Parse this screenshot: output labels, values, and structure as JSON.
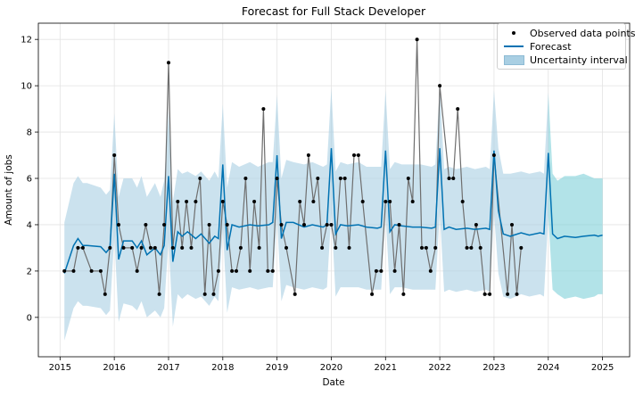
{
  "chart_data": {
    "type": "line",
    "title": "Forecast for Full Stack Developer",
    "xlabel": "Date",
    "ylabel": "Amount of jobs",
    "xlim": [
      2014.6,
      2025.5
    ],
    "ylim": [
      -1.7,
      12.7
    ],
    "x_ticks": [
      "2015",
      "2016",
      "2017",
      "2018",
      "2019",
      "2020",
      "2021",
      "2022",
      "2023",
      "2024",
      "2025"
    ],
    "y_ticks": [
      "0",
      "2",
      "4",
      "6",
      "8",
      "10",
      "12"
    ],
    "grid": true,
    "legend_position": "top-right",
    "legend": {
      "observed": "Observed data points",
      "forecast": "Forecast",
      "uncertainty": "Uncertainty interval"
    },
    "colors": {
      "observed": "#000000",
      "observed_line": "#6e6e6e",
      "forecast": "#0072B2",
      "uncertainty": "#a9cfe3",
      "future_uncertainty": "#7fd1d8"
    },
    "observed": {
      "x": [
        2015.08,
        2015.25,
        2015.33,
        2015.42,
        2015.58,
        2015.75,
        2015.83,
        2015.92,
        2016.0,
        2016.08,
        2016.17,
        2016.33,
        2016.42,
        2016.5,
        2016.58,
        2016.67,
        2016.75,
        2016.83,
        2016.92,
        2017.0,
        2017.08,
        2017.17,
        2017.25,
        2017.33,
        2017.42,
        2017.5,
        2017.58,
        2017.67,
        2017.75,
        2017.83,
        2017.92,
        2018.0,
        2018.08,
        2018.17,
        2018.25,
        2018.33,
        2018.42,
        2018.5,
        2018.58,
        2018.67,
        2018.75,
        2018.83,
        2018.92,
        2019.0,
        2019.08,
        2019.17,
        2019.33,
        2019.42,
        2019.5,
        2019.58,
        2019.67,
        2019.75,
        2019.83,
        2019.92,
        2020.0,
        2020.08,
        2020.17,
        2020.25,
        2020.33,
        2020.42,
        2020.5,
        2020.58,
        2020.75,
        2020.83,
        2020.92,
        2021.0,
        2021.08,
        2021.17,
        2021.25,
        2021.33,
        2021.42,
        2021.5,
        2021.58,
        2021.67,
        2021.75,
        2021.83,
        2021.92,
        2022.0,
        2022.17,
        2022.25,
        2022.33,
        2022.42,
        2022.5,
        2022.58,
        2022.67,
        2022.75,
        2022.83,
        2022.92,
        2023.0,
        2023.25,
        2023.33,
        2023.42,
        2023.5
      ],
      "y": [
        2,
        2,
        3,
        3,
        2,
        2,
        1,
        3,
        7,
        4,
        3,
        3,
        2,
        3,
        4,
        3,
        3,
        1,
        4,
        11,
        3,
        5,
        3,
        5,
        3,
        5,
        6,
        1,
        4,
        1,
        2,
        5,
        4,
        2,
        2,
        3,
        6,
        2,
        5,
        3,
        9,
        2,
        2,
        6,
        4,
        3,
        1,
        5,
        4,
        7,
        5,
        6,
        3,
        4,
        4,
        3,
        6,
        6,
        3,
        7,
        7,
        5,
        1,
        2,
        2,
        5,
        5,
        2,
        4,
        1,
        6,
        5,
        12,
        3,
        3,
        2,
        3,
        10,
        6,
        6,
        9,
        5,
        3,
        3,
        4,
        3,
        1,
        1,
        7,
        1,
        4,
        1,
        3
      ]
    },
    "forecast": {
      "x": [
        2015.08,
        2015.25,
        2015.33,
        2015.42,
        2015.5,
        2015.75,
        2015.85,
        2015.92,
        2016.0,
        2016.08,
        2016.17,
        2016.33,
        2016.42,
        2016.5,
        2016.6,
        2016.75,
        2016.85,
        2016.92,
        2017.0,
        2017.08,
        2017.17,
        2017.25,
        2017.35,
        2017.5,
        2017.6,
        2017.75,
        2017.85,
        2017.92,
        2018.0,
        2018.08,
        2018.17,
        2018.3,
        2018.5,
        2018.65,
        2018.85,
        2018.92,
        2019.0,
        2019.08,
        2019.17,
        2019.3,
        2019.5,
        2019.65,
        2019.85,
        2019.92,
        2020.0,
        2020.08,
        2020.17,
        2020.3,
        2020.5,
        2020.65,
        2020.85,
        2020.92,
        2021.0,
        2021.08,
        2021.17,
        2021.3,
        2021.5,
        2021.65,
        2021.85,
        2021.92,
        2022.0,
        2022.08,
        2022.17,
        2022.3,
        2022.5,
        2022.65,
        2022.85,
        2022.92,
        2023.0,
        2023.08,
        2023.17,
        2023.3,
        2023.5,
        2023.65,
        2023.85,
        2023.92,
        2024.0,
        2024.08,
        2024.17,
        2024.3,
        2024.5,
        2024.65,
        2024.85,
        2024.92,
        2025.0
      ],
      "y": [
        1.9,
        3.1,
        3.4,
        3.1,
        3.1,
        3.05,
        2.8,
        3.0,
        6.2,
        2.5,
        3.3,
        3.3,
        3.0,
        3.3,
        2.7,
        3.0,
        2.7,
        3.1,
        6.1,
        2.4,
        3.7,
        3.5,
        3.7,
        3.4,
        3.6,
        3.2,
        3.5,
        3.4,
        6.6,
        2.9,
        4.0,
        3.9,
        4.0,
        3.95,
        4.0,
        4.1,
        7.0,
        3.4,
        4.1,
        4.1,
        3.9,
        4.0,
        3.9,
        4.0,
        7.3,
        3.6,
        4.0,
        3.95,
        4.0,
        3.9,
        3.85,
        3.9,
        7.2,
        3.7,
        4.0,
        3.95,
        3.9,
        3.9,
        3.85,
        3.9,
        7.3,
        3.8,
        3.9,
        3.8,
        3.85,
        3.8,
        3.85,
        3.8,
        7.2,
        4.6,
        3.6,
        3.5,
        3.65,
        3.55,
        3.65,
        3.6,
        7.1,
        3.6,
        3.4,
        3.5,
        3.45,
        3.5,
        3.55,
        3.5,
        3.55
      ]
    },
    "uncertainty": {
      "x": [
        2015.08,
        2015.25,
        2015.33,
        2015.42,
        2015.5,
        2015.75,
        2015.85,
        2015.92,
        2016.0,
        2016.08,
        2016.17,
        2016.33,
        2016.42,
        2016.5,
        2016.6,
        2016.75,
        2016.85,
        2016.92,
        2017.0,
        2017.08,
        2017.17,
        2017.25,
        2017.35,
        2017.5,
        2017.6,
        2017.75,
        2017.85,
        2017.92,
        2018.0,
        2018.08,
        2018.17,
        2018.3,
        2018.5,
        2018.65,
        2018.85,
        2018.92,
        2019.0,
        2019.08,
        2019.17,
        2019.3,
        2019.5,
        2019.65,
        2019.85,
        2019.92,
        2020.0,
        2020.08,
        2020.17,
        2020.3,
        2020.5,
        2020.65,
        2020.85,
        2020.92,
        2021.0,
        2021.08,
        2021.17,
        2021.3,
        2021.5,
        2021.65,
        2021.85,
        2021.92,
        2022.0,
        2022.08,
        2022.17,
        2022.3,
        2022.5,
        2022.65,
        2022.85,
        2022.92,
        2023.0,
        2023.08,
        2023.17,
        2023.3,
        2023.5,
        2023.65,
        2023.85,
        2023.92,
        2024.0,
        2024.08,
        2024.17,
        2024.3,
        2024.5,
        2024.65,
        2024.85,
        2024.92,
        2025.0
      ],
      "upper": [
        4.1,
        5.8,
        6.1,
        5.8,
        5.8,
        5.6,
        5.3,
        5.5,
        8.8,
        5.2,
        6.0,
        6.0,
        5.6,
        6.1,
        5.2,
        5.8,
        5.2,
        5.9,
        8.9,
        5.0,
        6.4,
        6.2,
        6.3,
        6.1,
        6.3,
        5.9,
        6.3,
        6.0,
        9.2,
        5.6,
        6.7,
        6.5,
        6.7,
        6.5,
        6.7,
        6.7,
        9.6,
        6.0,
        6.8,
        6.7,
        6.6,
        6.7,
        6.5,
        6.6,
        9.9,
        6.3,
        6.7,
        6.6,
        6.7,
        6.5,
        6.5,
        6.5,
        9.8,
        6.4,
        6.7,
        6.6,
        6.6,
        6.6,
        6.5,
        6.6,
        10.0,
        6.4,
        6.5,
        6.4,
        6.5,
        6.4,
        6.5,
        6.4,
        9.8,
        7.3,
        6.2,
        6.2,
        6.3,
        6.2,
        6.3,
        6.2,
        9.7,
        6.2,
        5.9,
        6.1,
        6.1,
        6.2,
        6.0,
        6.0,
        6.0
      ],
      "lower": [
        -1.0,
        0.4,
        0.7,
        0.5,
        0.5,
        0.4,
        0.1,
        0.3,
        3.5,
        -0.2,
        0.6,
        0.5,
        0.3,
        0.7,
        0.0,
        0.3,
        0.0,
        0.4,
        3.4,
        -0.4,
        1.0,
        0.8,
        1.0,
        0.8,
        0.9,
        0.5,
        0.9,
        0.7,
        3.9,
        0.2,
        1.3,
        1.2,
        1.3,
        1.2,
        1.3,
        1.3,
        4.3,
        0.7,
        1.4,
        1.3,
        1.2,
        1.3,
        1.2,
        1.3,
        4.5,
        0.9,
        1.3,
        1.3,
        1.3,
        1.2,
        1.2,
        1.2,
        4.5,
        1.0,
        1.3,
        1.3,
        1.2,
        1.2,
        1.2,
        1.2,
        4.6,
        1.1,
        1.2,
        1.1,
        1.2,
        1.1,
        1.2,
        1.1,
        4.5,
        1.9,
        0.9,
        0.8,
        1.0,
        0.9,
        1.0,
        0.9,
        4.4,
        1.2,
        1.0,
        0.8,
        0.9,
        0.8,
        0.9,
        1.0,
        1.0
      ]
    },
    "history_end": 2024.0
  }
}
